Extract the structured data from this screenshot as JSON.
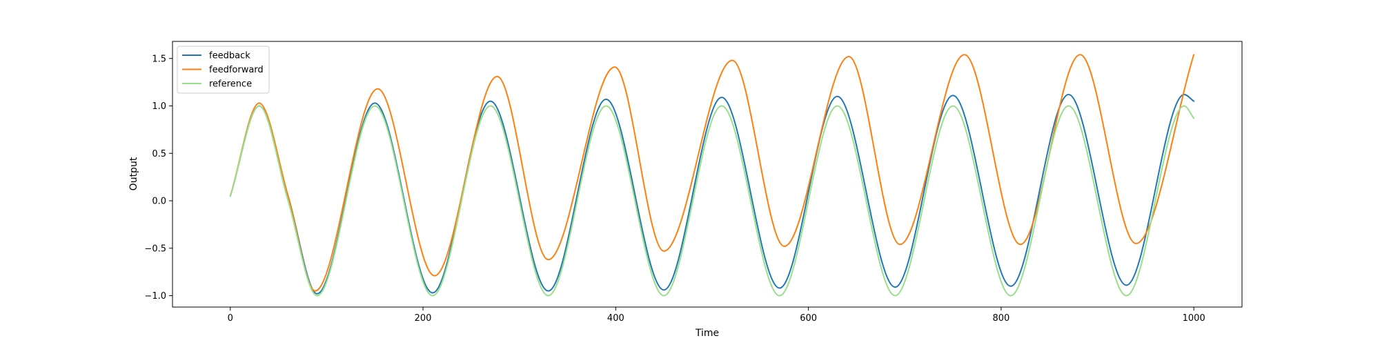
{
  "chart_data": {
    "type": "line",
    "xlabel": "Time",
    "ylabel": "Output",
    "xlim": [
      -60,
      1050
    ],
    "ylim": [
      -1.12,
      1.68
    ],
    "xticks": [
      0,
      200,
      400,
      600,
      800,
      1000
    ],
    "xtick_labels": [
      "0",
      "200",
      "400",
      "600",
      "800",
      "1000"
    ],
    "yticks": [
      -1.0,
      -0.5,
      0.0,
      0.5,
      1.0,
      1.5
    ],
    "ytick_labels": [
      "−1.0",
      "−0.5",
      "0.0",
      "0.5",
      "1.0",
      "1.5"
    ],
    "grid": false,
    "legend_position": "upper-left",
    "series": [
      {
        "name": "feedback",
        "color": "#1f77b4",
        "x": [
          0,
          30,
          60,
          90,
          150,
          210,
          270,
          330,
          390,
          450,
          510,
          570,
          630,
          690,
          750,
          810,
          870,
          930,
          990,
          1000
        ],
        "y": [
          0.05,
          1.0,
          0.05,
          -0.98,
          1.03,
          -0.97,
          1.05,
          -0.95,
          1.07,
          -0.94,
          1.09,
          -0.92,
          1.1,
          -0.91,
          1.11,
          -0.9,
          1.12,
          -0.89,
          1.12,
          1.05
        ]
      },
      {
        "name": "feedforward",
        "color": "#ff7f0e",
        "x": [
          0,
          30,
          60,
          88,
          153,
          212,
          277,
          330,
          399,
          450,
          521,
          575,
          642,
          695,
          762,
          820,
          882,
          940,
          1000
        ],
        "y": [
          0.05,
          1.03,
          0.05,
          -0.95,
          1.18,
          -0.79,
          1.31,
          -0.62,
          1.41,
          -0.53,
          1.48,
          -0.48,
          1.52,
          -0.46,
          1.54,
          -0.46,
          1.54,
          -0.45,
          1.54
        ]
      },
      {
        "name": "reference",
        "color": "#98df8a",
        "x": [
          0,
          30,
          60,
          90,
          150,
          210,
          270,
          330,
          390,
          450,
          510,
          570,
          630,
          690,
          750,
          810,
          870,
          930,
          990,
          1000
        ],
        "y": [
          0.05,
          1.0,
          0.0,
          -1.0,
          1.0,
          -1.0,
          1.0,
          -1.0,
          1.0,
          -1.0,
          1.0,
          -1.0,
          1.0,
          -1.0,
          1.0,
          -1.0,
          1.0,
          -1.0,
          1.0,
          0.87
        ]
      }
    ]
  }
}
